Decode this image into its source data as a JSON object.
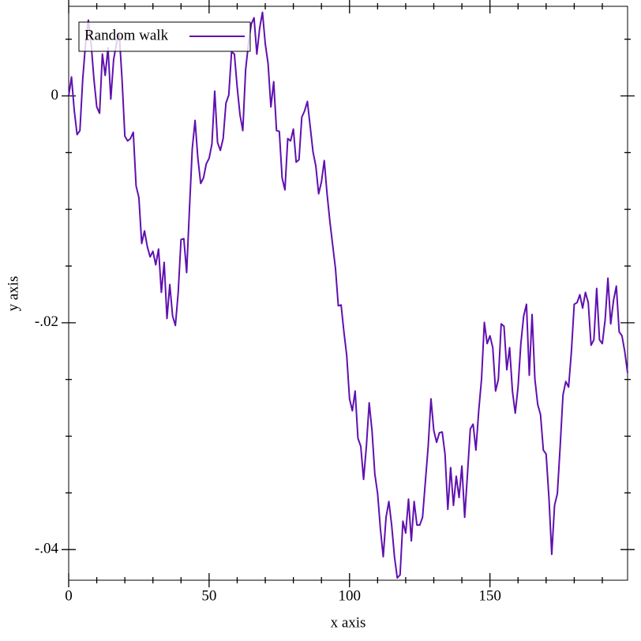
{
  "chart_data": {
    "type": "line",
    "x_label": "x axis",
    "y_label": "y axis",
    "legend": "top-left",
    "xlim": [
      0,
      199
    ],
    "ylim": [
      -0.0427,
      0.0079
    ],
    "xticks": [
      0,
      50,
      100,
      150
    ],
    "xminor_ticks": [
      10,
      20,
      30,
      40,
      60,
      70,
      80,
      90,
      110,
      120,
      130,
      140,
      160,
      170,
      180,
      190
    ],
    "yticks": [
      {
        "value": -0.04,
        "label": "-.04"
      },
      {
        "value": -0.02,
        "label": "-.02"
      },
      0
    ],
    "yminor_ticks": [
      -0.035,
      -0.03,
      -0.025,
      -0.015,
      -0.01,
      -0.005,
      0.005
    ],
    "x": [
      0,
      1,
      2,
      3,
      4,
      5,
      6,
      7,
      8,
      9,
      10,
      11,
      12,
      13,
      14,
      15,
      16,
      17,
      18,
      19,
      20,
      21,
      22,
      23,
      24,
      25,
      26,
      27,
      28,
      29,
      30,
      31,
      32,
      33,
      34,
      35,
      36,
      37,
      38,
      39,
      40,
      41,
      42,
      43,
      44,
      45,
      46,
      47,
      48,
      49,
      50,
      51,
      52,
      53,
      54,
      55,
      56,
      57,
      58,
      59,
      60,
      61,
      62,
      63,
      64,
      65,
      66,
      67,
      68,
      69,
      70,
      71,
      72,
      73,
      74,
      75,
      76,
      77,
      78,
      79,
      80,
      81,
      82,
      83,
      84,
      85,
      86,
      87,
      88,
      89,
      90,
      91,
      92,
      93,
      94,
      95,
      96,
      97,
      98,
      99,
      100,
      101,
      102,
      103,
      104,
      105,
      106,
      107,
      108,
      109,
      110,
      111,
      112,
      113,
      114,
      115,
      116,
      117,
      118,
      119,
      120,
      121,
      122,
      123,
      124,
      125,
      126,
      127,
      128,
      129,
      130,
      131,
      132,
      133,
      134,
      135,
      136,
      137,
      138,
      139,
      140,
      141,
      142,
      143,
      144,
      145,
      146,
      147,
      148,
      149,
      150,
      151,
      152,
      153,
      154,
      155,
      156,
      157,
      158,
      159,
      160,
      161,
      162,
      163,
      164,
      165,
      166,
      167,
      168,
      169,
      170,
      171,
      172,
      173,
      174,
      175,
      176,
      177,
      178,
      179,
      180,
      181,
      182,
      183,
      184,
      185,
      186,
      187,
      188,
      189,
      190,
      191,
      192,
      193,
      194,
      195,
      196,
      197,
      198,
      199
    ],
    "series": [
      {
        "name": "Random walk",
        "color": "#6010b0",
        "values": [
          0,
          0.00167,
          -0.00132,
          -0.00341,
          -0.00306,
          0.00146,
          0.00459,
          0.00668,
          0.00459,
          0.00146,
          -0.00097,
          -0.00153,
          0.00369,
          0.00181,
          0.00424,
          -0.00028,
          0.0032,
          0.00459,
          0.0055,
          0.00146,
          -0.00355,
          -0.00397,
          -0.00376,
          -0.0032,
          -0.00793,
          -0.00897,
          -0.01301,
          -0.0119,
          -0.01329,
          -0.01419,
          -0.0137,
          -0.01489,
          -0.0135,
          -0.01732,
          -0.01468,
          -0.01962,
          -0.01663,
          -0.01941,
          -0.02024,
          -0.01732,
          -0.01266,
          -0.01259,
          -0.01558,
          -0.01002,
          -0.00466,
          -0.00216,
          -0.0055,
          -0.00772,
          -0.00723,
          -0.00598,
          -0.0055,
          -0.00424,
          0.00042,
          -0.0041,
          -0.0048,
          -0.00376,
          -0.00063,
          7e-05,
          0.0039,
          0.00369,
          0.00077,
          -0.00167,
          -0.00306,
          0.0023,
          0.00459,
          0.00633,
          0.00689,
          0.00369,
          0.00598,
          0.00737,
          0.00459,
          0.00285,
          -0.00097,
          0.00125,
          -0.00306,
          -0.00313,
          -0.00723,
          -0.00828,
          -0.00376,
          -0.00397,
          -0.00292,
          -0.00584,
          -0.00563,
          -0.00188,
          -0.00132,
          -0.00049,
          -0.00271,
          -0.00494,
          -0.00619,
          -0.00863,
          -0.00758,
          -0.0057,
          -0.00863,
          -0.01106,
          -0.01315,
          -0.01523,
          -0.0185,
          -0.01843,
          -0.0208,
          -0.02289,
          -0.02671,
          -0.02776,
          -0.02602,
          -0.03019,
          -0.03089,
          -0.03381,
          -0.03089,
          -0.02706,
          -0.0295,
          -0.03332,
          -0.03506,
          -0.03819,
          -0.04063,
          -0.03715,
          -0.03576,
          -0.03784,
          -0.04063,
          -0.0425,
          -0.04223,
          -0.0375,
          -0.03854,
          -0.03555,
          -0.03923,
          -0.03576,
          -0.03784,
          -0.03784,
          -0.03715,
          -0.03402,
          -0.03089,
          -0.02671,
          -0.0295,
          -0.03054,
          -0.0297,
          -0.02963,
          -0.03158,
          -0.03645,
          -0.03277,
          -0.0361,
          -0.03353,
          -0.03541,
          -0.03263,
          -0.03715,
          -0.03332,
          -0.02936,
          -0.02894,
          -0.03123,
          -0.02776,
          -0.02497,
          -0.01997,
          -0.02184,
          -0.02115,
          -0.02219,
          -0.02602,
          -0.02497,
          -0.0201,
          -0.02031,
          -0.02414,
          -0.02219,
          -0.02602,
          -0.02797,
          -0.02567,
          -0.02184,
          -0.01941,
          -0.01837,
          -0.02463,
          -0.01927,
          -0.02497,
          -0.0272,
          -0.0281,
          -0.03123,
          -0.03158,
          -0.03541,
          -0.04042,
          -0.0361,
          -0.03506,
          -0.03089,
          -0.02637,
          -0.02518,
          -0.02567,
          -0.02254,
          -0.01837,
          -0.01823,
          -0.01753,
          -0.01871,
          -0.01732,
          -0.01823,
          -0.02198,
          -0.0215,
          -0.01697,
          -0.0215,
          -0.02184,
          -0.01976,
          -0.01607,
          -0.0201,
          -0.01802,
          -0.01677,
          -0.0208,
          -0.02115,
          -0.02254,
          -0.02442
        ]
      }
    ]
  }
}
